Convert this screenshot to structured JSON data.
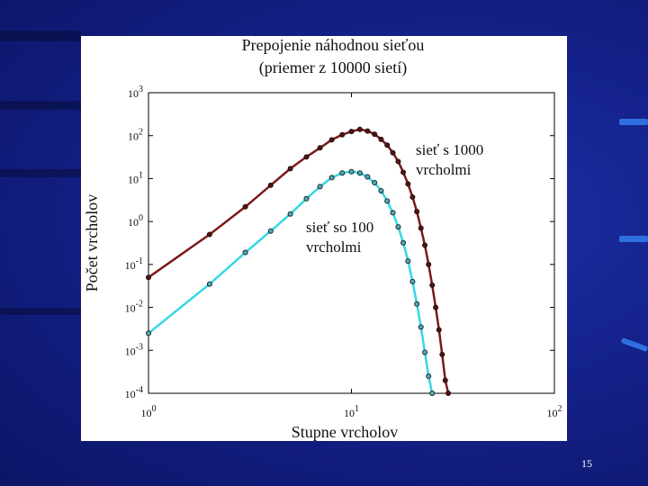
{
  "slide": {
    "number": "15"
  },
  "chart_data": {
    "type": "line",
    "title": "Prepojenie náhodnou sieťou",
    "subtitle": "(priemer z 10000 sietí)",
    "xlabel": "Stupne vrcholov",
    "ylabel": "Počet vrcholov",
    "x_scale": "log",
    "y_scale": "log",
    "xlim": [
      1,
      100
    ],
    "ylim": [
      0.0001,
      1000
    ],
    "x_ticks": [
      {
        "value": 1,
        "base": "10",
        "exp": "0"
      },
      {
        "value": 10,
        "base": "10",
        "exp": "1"
      },
      {
        "value": 100,
        "base": "10",
        "exp": "2"
      }
    ],
    "y_ticks": [
      {
        "value": 0.0001,
        "base": "10",
        "exp": "-4"
      },
      {
        "value": 0.001,
        "base": "10",
        "exp": "-3"
      },
      {
        "value": 0.01,
        "base": "10",
        "exp": "-2"
      },
      {
        "value": 0.1,
        "base": "10",
        "exp": "-1"
      },
      {
        "value": 1,
        "base": "10",
        "exp": "0"
      },
      {
        "value": 10,
        "base": "10",
        "exp": "1"
      },
      {
        "value": 100,
        "base": "10",
        "exp": "2"
      },
      {
        "value": 1000,
        "base": "10",
        "exp": "3"
      }
    ],
    "grid": false,
    "series": [
      {
        "color": "#7a1a1a",
        "marker_fill": "#5a1010",
        "annotation_lines": [
          "sieť s 1000",
          "vrcholmi"
        ],
        "x": [
          1,
          2,
          3,
          4,
          5,
          6,
          7,
          8,
          9,
          10,
          11,
          12,
          13,
          14,
          15,
          16,
          17,
          18,
          19,
          20,
          21,
          22,
          23,
          24,
          25,
          26,
          27,
          28,
          29,
          30
        ],
        "y": [
          0.05,
          0.5,
          2.2,
          7,
          17,
          32,
          52,
          80,
          105,
          125,
          140,
          128,
          108,
          82,
          60,
          40,
          25,
          14,
          7.5,
          3.7,
          1.7,
          0.7,
          0.28,
          0.1,
          0.033,
          0.01,
          0.003,
          0.0008,
          0.0002,
          0.0001
        ]
      },
      {
        "color": "#33d8e6",
        "marker_fill": "#4fa8b4",
        "annotation_lines": [
          "sieť so 100",
          "vrcholmi"
        ],
        "x": [
          1,
          2,
          3,
          4,
          5,
          6,
          7,
          8,
          9,
          10,
          11,
          12,
          13,
          14,
          15,
          16,
          17,
          18,
          19,
          20,
          21,
          22,
          23,
          24,
          25
        ],
        "y": [
          0.0025,
          0.035,
          0.19,
          0.6,
          1.5,
          3.4,
          6.5,
          10.5,
          13.5,
          14.5,
          13.5,
          11,
          8,
          5.2,
          3,
          1.6,
          0.75,
          0.32,
          0.12,
          0.04,
          0.012,
          0.0035,
          0.0009,
          0.00025,
          0.0001
        ]
      }
    ]
  }
}
